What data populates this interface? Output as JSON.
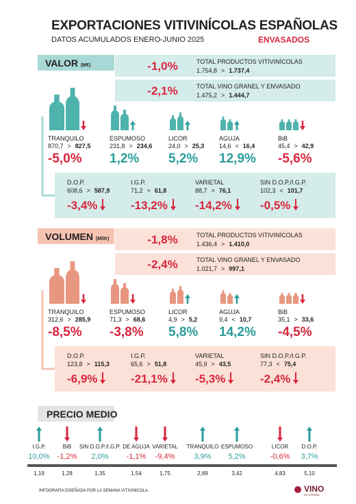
{
  "header": {
    "title": "EXPORTACIONES VITIVINÍCOLAS ESPAÑOLAS",
    "subtitle": "DATOS ACUMULADOS ENERO-JUNIO 2025",
    "tag": "ENVASADOS"
  },
  "valor": {
    "label": "VALOR",
    "unit": "(M€)",
    "totals": [
      {
        "pct": "-1,0%",
        "name": "TOTAL PRODUCTOS VITIVINÍCOLAS",
        "from": "1.754,8",
        "sign": ">",
        "to": "1.737,4"
      },
      {
        "pct": "-2,1%",
        "name": "TOTAL VINO GRANEL Y ENVASADO",
        "from": "1.475,2",
        "sign": ">",
        "to": "1.444,7"
      }
    ],
    "products": [
      {
        "name": "TRANQUILO",
        "from": "870,7",
        "sign": ">",
        "to": "827,5",
        "pct": "-5,0%"
      },
      {
        "name": "ESPUMOSO",
        "from": "231,8",
        "sign": ">",
        "to": "234,6",
        "pct": "1,2%"
      },
      {
        "name": "LICOR",
        "from": "24,0",
        "sign": ">",
        "to": "25,3",
        "pct": "5,2%"
      },
      {
        "name": "AGUJA",
        "from": "14,6",
        "sign": "<",
        "to": "16,4",
        "pct": "12,9%"
      },
      {
        "name": "BiB",
        "from": "45,4",
        "sign": ">",
        "to": "42,9",
        "pct": "-5,6%"
      }
    ],
    "subs": [
      {
        "name": "D.O.P.",
        "from": "608,6",
        "sign": ">",
        "to": "587,9",
        "pct": "-3,4%"
      },
      {
        "name": "I.G.P.",
        "from": "71,2",
        "sign": ">",
        "to": "61,8",
        "pct": "-13,2%"
      },
      {
        "name": "VARIETAL",
        "from": "88,7",
        "sign": ">",
        "to": "76,1",
        "pct": "-14,2%"
      },
      {
        "name": "SIN D.O.P./I.G.P.",
        "from": "102,3",
        "sign": "<",
        "to": "101,7",
        "pct": "-0,5%"
      }
    ]
  },
  "volumen": {
    "label": "VOLUMEN",
    "unit": "(Mlitr)",
    "totals": [
      {
        "pct": "-1,8%",
        "name": "TOTAL PRODUCTOS VITIVINÍCOLAS",
        "from": "1.436,4",
        "sign": ">",
        "to": "1.410,0"
      },
      {
        "pct": "-2,4%",
        "name": "TOTAL VINO GRANEL Y ENVASADO",
        "from": "1.021,7",
        "sign": ">",
        "to": "997,1"
      }
    ],
    "products": [
      {
        "name": "TRANQUILO",
        "from": "312,6",
        "sign": ">",
        "to": "285,9",
        "pct": "-8,5%"
      },
      {
        "name": "ESPUMOSO",
        "from": "71,3",
        "sign": ">",
        "to": "68,6",
        "pct": "-3,8%"
      },
      {
        "name": "LICOR",
        "from": "4,9",
        "sign": ">",
        "to": "5,2",
        "pct": "5,8%"
      },
      {
        "name": "AGUJA",
        "from": "9,4",
        "sign": "<",
        "to": "10,7",
        "pct": "14,2%"
      },
      {
        "name": "BiB",
        "from": "35,1",
        "sign": ">",
        "to": "33,6",
        "pct": "-4,5%"
      }
    ],
    "subs": [
      {
        "name": "D.O.P.",
        "from": "123,8",
        "sign": ">",
        "to": "115,3",
        "pct": "-6,9%"
      },
      {
        "name": "I.G.P.",
        "from": "65,6",
        "sign": ">",
        "to": "51,8",
        "pct": "-21,1%"
      },
      {
        "name": "VARIETAL",
        "from": "45,9",
        "sign": ">",
        "to": "43,5",
        "pct": "-5,3%"
      },
      {
        "name": "SIN D.O.P./I.G.P.",
        "from": "77,3",
        "sign": "<",
        "to": "75,4",
        "pct": "-2,4%"
      }
    ]
  },
  "precio_medio": {
    "title": "PRECIO MEDIO",
    "items": [
      {
        "name": "I.G.P.",
        "pct": "10,0%",
        "price": "1,19"
      },
      {
        "name": "BiB",
        "pct": "-1,2%",
        "price": "1,28"
      },
      {
        "name": "SIN D.O.P./I.G.P.",
        "pct": "2,0%",
        "price": "1,35"
      },
      {
        "name": "DE AGUJA",
        "pct": "-1,1%",
        "price": "1,54"
      },
      {
        "name": "VARIETAL",
        "pct": "-9,4%",
        "price": "1,75"
      },
      {
        "name": "TRANQUILO",
        "pct": "3,9%",
        "price": "2,89"
      },
      {
        "name": "ESPUMOSO",
        "pct": "5,2%",
        "price": "3,42"
      },
      {
        "name": "LICOR",
        "pct": "-0,6%",
        "price": "4,83"
      },
      {
        "name": "D.O.P.",
        "pct": "3,7%",
        "price": "5,10"
      }
    ]
  },
  "footer": {
    "credit": "INFOGRAFÍA DISEÑADA POR LA SEMANA VITIVINÍCOLA.",
    "logo": "VINO",
    "logo_sub": "DE ESPAÑA"
  }
}
